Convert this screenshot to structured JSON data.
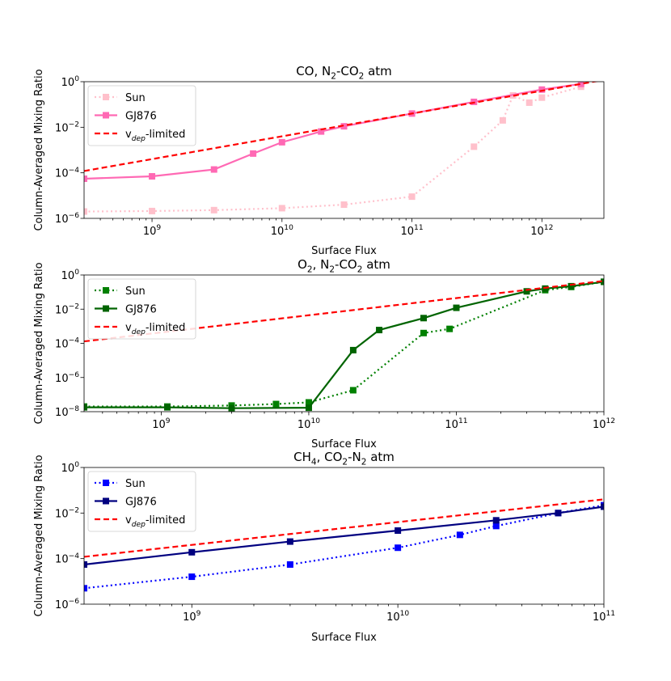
{
  "chart_data": [
    {
      "type": "line",
      "title_parts": [
        "CO, N",
        "2",
        "-CO",
        "2",
        " atm"
      ],
      "xlabel": "Surface Flux",
      "ylabel": "Column-Averaged Mixing Ratio",
      "xscale": "log",
      "yscale": "log",
      "xlim": [
        300000000.0,
        3000000000000.0
      ],
      "ylim": [
        1e-06,
        1
      ],
      "xticks": [
        {
          "value": 1000000000.0,
          "base": "10",
          "exp": "9"
        },
        {
          "value": 10000000000.0,
          "base": "10",
          "exp": "10"
        },
        {
          "value": 100000000000.0,
          "base": "10",
          "exp": "11"
        },
        {
          "value": 1000000000000.0,
          "base": "10",
          "exp": "12"
        }
      ],
      "yticks": [
        {
          "value": 1e-06,
          "base": "10",
          "exp": "−6"
        },
        {
          "value": 0.0001,
          "base": "10",
          "exp": "−4"
        },
        {
          "value": 0.01,
          "base": "10",
          "exp": "−2"
        },
        {
          "value": 1,
          "base": "10",
          "exp": "0"
        }
      ],
      "legend_position": "upper-left",
      "series": [
        {
          "name": "Sun",
          "label_parts": [
            "Sun"
          ],
          "color": "#ffc0cb",
          "style": "dotted",
          "marker": "square",
          "x": [
            300000000.0,
            1000000000.0,
            3000000000.0,
            10000000000.0,
            30000000000.0,
            100000000000.0,
            300000000000.0,
            500000000000.0,
            600000000000.0,
            800000000000.0,
            1000000000000.0,
            2000000000000.0
          ],
          "y": [
            2e-06,
            2.1e-06,
            2.3e-06,
            2.8e-06,
            4e-06,
            9e-06,
            0.0014,
            0.02,
            0.25,
            0.12,
            0.2,
            0.6
          ]
        },
        {
          "name": "GJ876",
          "label_parts": [
            "GJ876"
          ],
          "color": "#ff69b4",
          "style": "solid",
          "marker": "square",
          "x": [
            300000000.0,
            1000000000.0,
            3000000000.0,
            6000000000.0,
            10000000000.0,
            20000000000.0,
            30000000000.0,
            100000000000.0,
            300000000000.0,
            1000000000000.0,
            2000000000000.0
          ],
          "y": [
            5.5e-05,
            7e-05,
            0.00014,
            0.0007,
            0.0022,
            0.0065,
            0.011,
            0.04,
            0.13,
            0.45,
            0.8
          ]
        },
        {
          "name": "vdep-limited",
          "label_parts": [
            "v",
            "dep",
            "-limited"
          ],
          "color": "#ff0000",
          "style": "dashed",
          "marker": "none",
          "x": [
            300000000.0,
            3000000000000.0
          ],
          "y": [
            0.00012,
            1.2
          ]
        }
      ]
    },
    {
      "type": "line",
      "title_parts": [
        "O",
        "2",
        ", N",
        "2",
        "-CO",
        "2",
        " atm"
      ],
      "xlabel": "Surface Flux",
      "ylabel": "Column-Averaged Mixing Ratio",
      "xscale": "log",
      "yscale": "log",
      "xlim": [
        300000000.0,
        1000000000000.0
      ],
      "ylim": [
        1e-08,
        1
      ],
      "xticks": [
        {
          "value": 1000000000.0,
          "base": "10",
          "exp": "9"
        },
        {
          "value": 10000000000.0,
          "base": "10",
          "exp": "10"
        },
        {
          "value": 100000000000.0,
          "base": "10",
          "exp": "11"
        },
        {
          "value": 1000000000000.0,
          "base": "10",
          "exp": "12"
        }
      ],
      "yticks": [
        {
          "value": 1e-08,
          "base": "10",
          "exp": "−8"
        },
        {
          "value": 1e-06,
          "base": "10",
          "exp": "−6"
        },
        {
          "value": 0.0001,
          "base": "10",
          "exp": "−4"
        },
        {
          "value": 0.01,
          "base": "10",
          "exp": "−2"
        },
        {
          "value": 1,
          "base": "10",
          "exp": "0"
        }
      ],
      "legend_position": "upper-left",
      "series": [
        {
          "name": "Sun",
          "label_parts": [
            "Sun"
          ],
          "color": "#008000",
          "style": "dotted",
          "marker": "square",
          "x": [
            300000000.0,
            1100000000.0,
            3000000000.0,
            6000000000.0,
            10000000000.0,
            20000000000.0,
            60000000000.0,
            90000000000.0,
            400000000000.0,
            600000000000.0,
            1000000000000.0
          ],
          "y": [
            2e-08,
            2e-08,
            2.3e-08,
            2.8e-08,
            3.5e-08,
            1.8e-07,
            0.0004,
            0.0007,
            0.13,
            0.2,
            0.4
          ]
        },
        {
          "name": "GJ876",
          "label_parts": [
            "GJ876"
          ],
          "color": "#006400",
          "style": "solid",
          "marker": "square",
          "x": [
            300000000.0,
            1100000000.0,
            3000000000.0,
            10000000000.0,
            20000000000.0,
            30000000000.0,
            60000000000.0,
            100000000000.0,
            300000000000.0,
            400000000000.0,
            600000000000.0,
            1000000000000.0
          ],
          "y": [
            1.8e-08,
            1.8e-08,
            1.6e-08,
            1.7e-08,
            4e-05,
            0.0006,
            0.003,
            0.012,
            0.11,
            0.16,
            0.22,
            0.4
          ]
        },
        {
          "name": "vdep-limited",
          "label_parts": [
            "v",
            "dep",
            "-limited"
          ],
          "color": "#ff0000",
          "style": "dashed",
          "marker": "none",
          "x": [
            300000000.0,
            1000000000000.0
          ],
          "y": [
            0.00013,
            0.45
          ]
        }
      ]
    },
    {
      "type": "line",
      "title_parts": [
        "CH",
        "4",
        ", CO",
        "2",
        "-N",
        "2",
        " atm"
      ],
      "xlabel": "Surface Flux",
      "ylabel": "Column-Averaged Mixing Ratio",
      "xscale": "log",
      "yscale": "log",
      "xlim": [
        300000000.0,
        100000000000.0
      ],
      "ylim": [
        1e-06,
        1
      ],
      "xticks": [
        {
          "value": 1000000000.0,
          "base": "10",
          "exp": "9"
        },
        {
          "value": 10000000000.0,
          "base": "10",
          "exp": "10"
        },
        {
          "value": 100000000000.0,
          "base": "10",
          "exp": "11"
        }
      ],
      "yticks": [
        {
          "value": 1e-06,
          "base": "10",
          "exp": "−6"
        },
        {
          "value": 0.0001,
          "base": "10",
          "exp": "−4"
        },
        {
          "value": 0.01,
          "base": "10",
          "exp": "−2"
        },
        {
          "value": 1,
          "base": "10",
          "exp": "0"
        }
      ],
      "legend_position": "upper-left",
      "series": [
        {
          "name": "Sun",
          "label_parts": [
            "Sun"
          ],
          "color": "#0000ff",
          "style": "dotted",
          "marker": "square",
          "x": [
            300000000.0,
            1000000000.0,
            3000000000.0,
            10000000000.0,
            20000000000.0,
            30000000000.0,
            60000000000.0,
            100000000000.0
          ],
          "y": [
            5e-06,
            1.6e-05,
            5.5e-05,
            0.0003,
            0.0011,
            0.0027,
            0.01,
            0.022
          ]
        },
        {
          "name": "GJ876",
          "label_parts": [
            "GJ876"
          ],
          "color": "#000080",
          "style": "solid",
          "marker": "square",
          "x": [
            300000000.0,
            1000000000.0,
            3000000000.0,
            10000000000.0,
            30000000000.0,
            60000000000.0,
            100000000000.0
          ],
          "y": [
            5.5e-05,
            0.00019,
            0.00056,
            0.0017,
            0.0048,
            0.01,
            0.019
          ]
        },
        {
          "name": "vdep-limited",
          "label_parts": [
            "v",
            "dep",
            "-limited"
          ],
          "color": "#ff0000",
          "style": "dashed",
          "marker": "none",
          "x": [
            300000000.0,
            100000000000.0
          ],
          "y": [
            0.00012,
            0.04
          ]
        }
      ]
    }
  ]
}
